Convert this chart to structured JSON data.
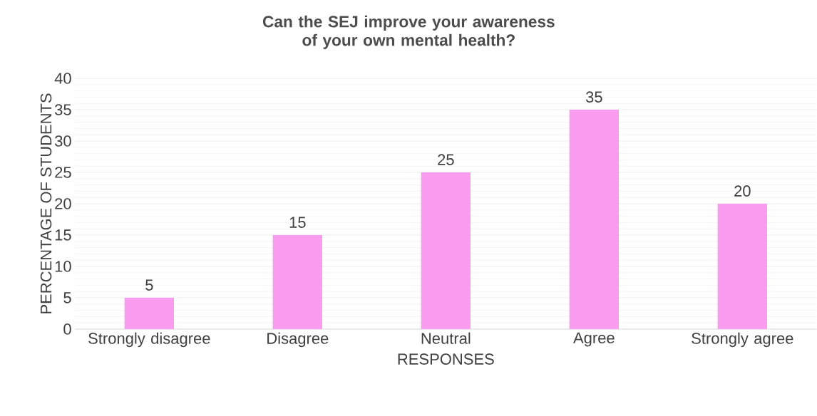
{
  "chart_data": {
    "type": "bar",
    "title": "Can the SEJ improve your awareness of your own mental health?",
    "xlabel": "RESPONSES",
    "ylabel": "PERCENTAGE OF STUDENTS",
    "categories": [
      "Strongly disagree",
      "Disagree",
      "Neutral",
      "Agree",
      "Strongly agree"
    ],
    "values": [
      5,
      15,
      25,
      35,
      20
    ],
    "color": "#f99bee",
    "ylim": [
      0,
      40
    ],
    "yticks": [
      0,
      5,
      10,
      15,
      20,
      25,
      30,
      35,
      40
    ],
    "grid": "y",
    "data_labels": true
  }
}
